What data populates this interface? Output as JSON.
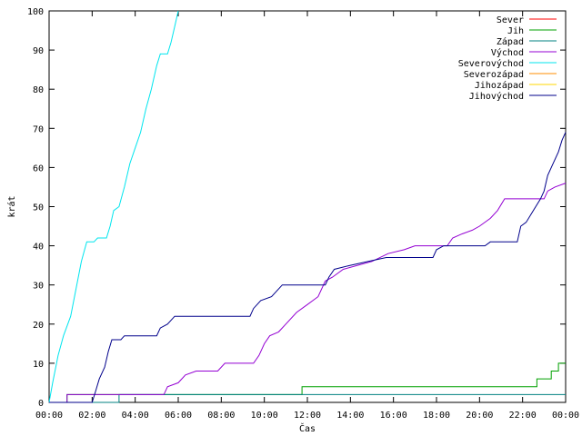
{
  "chart_data": {
    "type": "line",
    "xlabel": "Čas",
    "ylabel": "krát",
    "xlim": [
      "00:00",
      "24:00"
    ],
    "ylim": [
      0,
      100
    ],
    "x_ticks": [
      "00:00",
      "02:00",
      "04:00",
      "06:00",
      "08:00",
      "10:00",
      "12:00",
      "14:00",
      "16:00",
      "18:00",
      "20:00",
      "22:00",
      "00:00"
    ],
    "y_ticks": [
      "0",
      "10",
      "20",
      "30",
      "40",
      "50",
      "60",
      "70",
      "80",
      "90",
      "100"
    ],
    "legend_position": "top-right",
    "grid": false,
    "series": [
      {
        "name": "Sever",
        "color": "#ff0000",
        "points": []
      },
      {
        "name": "Jih",
        "color": "#00a000",
        "points": [
          [
            "00:00",
            0
          ],
          [
            "00:50",
            0
          ],
          [
            "00:50",
            2
          ],
          [
            "11:45",
            2
          ],
          [
            "11:45",
            4
          ],
          [
            "22:40",
            4
          ],
          [
            "22:40",
            6
          ],
          [
            "23:20",
            6
          ],
          [
            "23:20",
            8
          ],
          [
            "23:40",
            8
          ],
          [
            "23:40",
            10
          ],
          [
            "24:00",
            10
          ]
        ]
      },
      {
        "name": "Západ",
        "color": "#008080",
        "points": [
          [
            "00:00",
            0
          ],
          [
            "03:15",
            0
          ],
          [
            "03:15",
            2
          ],
          [
            "24:00",
            2
          ]
        ]
      },
      {
        "name": "Východ",
        "color": "#9400d3",
        "points": [
          [
            "00:00",
            0
          ],
          [
            "00:50",
            0
          ],
          [
            "00:50",
            2
          ],
          [
            "05:20",
            2
          ],
          [
            "05:30",
            4
          ],
          [
            "06:00",
            5
          ],
          [
            "06:20",
            7
          ],
          [
            "06:50",
            8
          ],
          [
            "07:50",
            8
          ],
          [
            "08:10",
            10
          ],
          [
            "09:30",
            10
          ],
          [
            "09:45",
            12
          ],
          [
            "10:00",
            15
          ],
          [
            "10:15",
            17
          ],
          [
            "10:40",
            18
          ],
          [
            "11:00",
            20
          ],
          [
            "11:30",
            23
          ],
          [
            "12:00",
            25
          ],
          [
            "12:30",
            27
          ],
          [
            "12:50",
            31
          ],
          [
            "13:10",
            32
          ],
          [
            "13:40",
            34
          ],
          [
            "14:20",
            35
          ],
          [
            "15:00",
            36
          ],
          [
            "15:45",
            38
          ],
          [
            "16:30",
            39
          ],
          [
            "17:00",
            40
          ],
          [
            "18:30",
            40
          ],
          [
            "18:45",
            42
          ],
          [
            "19:10",
            43
          ],
          [
            "19:40",
            44
          ],
          [
            "20:00",
            45
          ],
          [
            "20:30",
            47
          ],
          [
            "20:50",
            49
          ],
          [
            "21:10",
            52
          ],
          [
            "23:00",
            52
          ],
          [
            "23:10",
            54
          ],
          [
            "23:30",
            55
          ],
          [
            "24:00",
            56
          ]
        ]
      },
      {
        "name": "Severovýchod",
        "color": "#00e5ee",
        "points": [
          [
            "00:00",
            0
          ],
          [
            "00:10",
            5
          ],
          [
            "00:25",
            12
          ],
          [
            "00:40",
            17
          ],
          [
            "01:00",
            22
          ],
          [
            "01:15",
            29
          ],
          [
            "01:30",
            36
          ],
          [
            "01:45",
            41
          ],
          [
            "02:05",
            41
          ],
          [
            "02:15",
            42
          ],
          [
            "02:40",
            42
          ],
          [
            "02:50",
            45
          ],
          [
            "03:00",
            49
          ],
          [
            "03:15",
            50
          ],
          [
            "03:30",
            55
          ],
          [
            "03:45",
            61
          ],
          [
            "04:00",
            65
          ],
          [
            "04:15",
            69
          ],
          [
            "04:30",
            75
          ],
          [
            "04:45",
            80
          ],
          [
            "05:00",
            86
          ],
          [
            "05:10",
            89
          ],
          [
            "05:30",
            89
          ],
          [
            "05:40",
            92
          ],
          [
            "05:50",
            96
          ],
          [
            "06:00",
            100
          ]
        ]
      },
      {
        "name": "Severozápad",
        "color": "#ff8c00",
        "points": []
      },
      {
        "name": "Jihozápad",
        "color": "#ffd700",
        "points": []
      },
      {
        "name": "Jihovýchod",
        "color": "#00008b",
        "points": [
          [
            "00:00",
            0
          ],
          [
            "02:00",
            0
          ],
          [
            "02:10",
            3
          ],
          [
            "02:20",
            6
          ],
          [
            "02:35",
            9
          ],
          [
            "02:45",
            13
          ],
          [
            "02:55",
            16
          ],
          [
            "03:20",
            16
          ],
          [
            "03:30",
            17
          ],
          [
            "05:00",
            17
          ],
          [
            "05:10",
            19
          ],
          [
            "05:30",
            20
          ],
          [
            "05:50",
            22
          ],
          [
            "09:20",
            22
          ],
          [
            "09:30",
            24
          ],
          [
            "09:50",
            26
          ],
          [
            "10:20",
            27
          ],
          [
            "10:50",
            30
          ],
          [
            "12:50",
            30
          ],
          [
            "13:00",
            32
          ],
          [
            "13:15",
            34
          ],
          [
            "14:00",
            35
          ],
          [
            "14:50",
            36
          ],
          [
            "15:40",
            37
          ],
          [
            "17:50",
            37
          ],
          [
            "18:00",
            39
          ],
          [
            "18:20",
            40
          ],
          [
            "20:15",
            40
          ],
          [
            "20:30",
            41
          ],
          [
            "21:45",
            41
          ],
          [
            "21:55",
            45
          ],
          [
            "22:10",
            46
          ],
          [
            "22:30",
            49
          ],
          [
            "22:50",
            52
          ],
          [
            "23:00",
            54
          ],
          [
            "23:10",
            58
          ],
          [
            "23:25",
            61
          ],
          [
            "23:40",
            64
          ],
          [
            "23:50",
            67
          ],
          [
            "24:00",
            69
          ]
        ]
      }
    ]
  }
}
